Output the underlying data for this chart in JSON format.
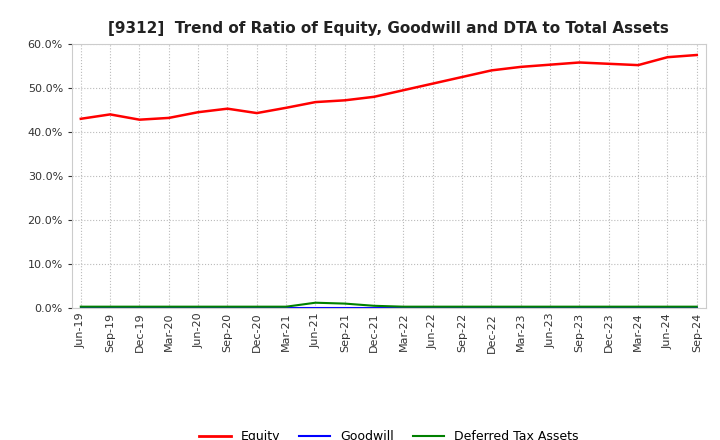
{
  "title": "[9312]  Trend of Ratio of Equity, Goodwill and DTA to Total Assets",
  "x_labels": [
    "Jun-19",
    "Sep-19",
    "Dec-19",
    "Mar-20",
    "Jun-20",
    "Sep-20",
    "Dec-20",
    "Mar-21",
    "Jun-21",
    "Sep-21",
    "Dec-21",
    "Mar-22",
    "Jun-22",
    "Sep-22",
    "Dec-22",
    "Mar-23",
    "Jun-23",
    "Sep-23",
    "Dec-23",
    "Mar-24",
    "Jun-24",
    "Sep-24"
  ],
  "equity": [
    0.43,
    0.44,
    0.428,
    0.432,
    0.445,
    0.453,
    0.443,
    0.455,
    0.468,
    0.472,
    0.48,
    0.495,
    0.51,
    0.525,
    0.54,
    0.548,
    0.553,
    0.558,
    0.555,
    0.552,
    0.57,
    0.575
  ],
  "goodwill": [
    0.001,
    0.001,
    0.001,
    0.001,
    0.001,
    0.001,
    0.001,
    0.001,
    0.001,
    0.001,
    0.001,
    0.001,
    0.001,
    0.001,
    0.001,
    0.001,
    0.001,
    0.001,
    0.001,
    0.001,
    0.001,
    0.001
  ],
  "dta": [
    0.003,
    0.003,
    0.003,
    0.003,
    0.003,
    0.003,
    0.003,
    0.003,
    0.012,
    0.01,
    0.005,
    0.003,
    0.003,
    0.003,
    0.003,
    0.003,
    0.003,
    0.003,
    0.003,
    0.003,
    0.003,
    0.003
  ],
  "equity_color": "#FF0000",
  "goodwill_color": "#0000FF",
  "dta_color": "#008000",
  "ylim": [
    0.0,
    0.6
  ],
  "yticks": [
    0.0,
    0.1,
    0.2,
    0.3,
    0.4,
    0.5,
    0.6
  ],
  "background_color": "#FFFFFF",
  "plot_bg_color": "#FFFFFF",
  "grid_color": "#BBBBBB",
  "title_fontsize": 11,
  "tick_fontsize": 8,
  "legend_labels": [
    "Equity",
    "Goodwill",
    "Deferred Tax Assets"
  ]
}
